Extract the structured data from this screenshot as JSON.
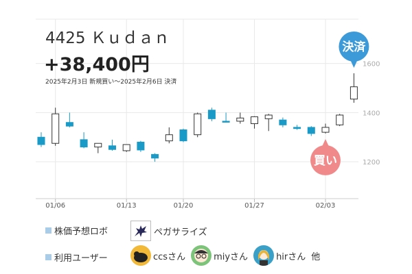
{
  "header": {
    "stock": "4425 Ｋｕｄａｎ",
    "profit": "+38,400円",
    "period": "2025年2月3日 新規買い〜2025年2月6日 決済"
  },
  "markers": {
    "buy": "買い",
    "settle": "決済"
  },
  "legend": {
    "robot_label": "株価予想ロボ",
    "robot_name": "ペガサライズ",
    "users_label": "利用ユーザー",
    "users": [
      "ccsさん",
      "miyさん",
      "hirさん"
    ],
    "others": "他"
  },
  "colors": {
    "up": "#ffffff",
    "down": "#1a9ac6",
    "outline": "#333333",
    "buy": "#f08a8a",
    "settle": "#3d9ad9",
    "grid": "#e8e8e8"
  },
  "chart_data": {
    "type": "candlestick",
    "y_ticks": [
      1200,
      1400,
      1600
    ],
    "x_ticks": [
      "01/06",
      "01/13",
      "01/20",
      "01/27",
      "02/03"
    ],
    "ylim": [
      1050,
      1780
    ],
    "candles": [
      {
        "date": "01/03",
        "open": 1300,
        "high": 1320,
        "low": 1260,
        "close": 1270
      },
      {
        "date": "01/06",
        "open": 1275,
        "high": 1420,
        "low": 1265,
        "close": 1395
      },
      {
        "date": "01/07",
        "open": 1360,
        "high": 1400,
        "low": 1340,
        "close": 1345
      },
      {
        "date": "01/08",
        "open": 1290,
        "high": 1320,
        "low": 1255,
        "close": 1260
      },
      {
        "date": "01/09",
        "open": 1260,
        "high": 1275,
        "low": 1235,
        "close": 1275
      },
      {
        "date": "01/10",
        "open": 1265,
        "high": 1290,
        "low": 1245,
        "close": 1250
      },
      {
        "date": "01/14",
        "open": 1245,
        "high": 1270,
        "low": 1240,
        "close": 1270
      },
      {
        "date": "01/15",
        "open": 1280,
        "high": 1285,
        "low": 1240,
        "close": 1248
      },
      {
        "date": "01/16",
        "open": 1230,
        "high": 1235,
        "low": 1200,
        "close": 1215
      },
      {
        "date": "01/17",
        "open": 1285,
        "high": 1340,
        "low": 1275,
        "close": 1310
      },
      {
        "date": "01/20",
        "open": 1330,
        "high": 1335,
        "low": 1280,
        "close": 1285
      },
      {
        "date": "01/21",
        "open": 1310,
        "high": 1400,
        "low": 1300,
        "close": 1395
      },
      {
        "date": "01/22",
        "open": 1410,
        "high": 1420,
        "low": 1365,
        "close": 1375
      },
      {
        "date": "01/23",
        "open": 1365,
        "high": 1400,
        "low": 1360,
        "close": 1363
      },
      {
        "date": "01/24",
        "open": 1365,
        "high": 1400,
        "low": 1355,
        "close": 1378
      },
      {
        "date": "01/27",
        "open": 1355,
        "high": 1385,
        "low": 1335,
        "close": 1383
      },
      {
        "date": "01/28",
        "open": 1375,
        "high": 1395,
        "low": 1325,
        "close": 1390
      },
      {
        "date": "01/29",
        "open": 1370,
        "high": 1380,
        "low": 1340,
        "close": 1350
      },
      {
        "date": "01/30",
        "open": 1340,
        "high": 1350,
        "low": 1330,
        "close": 1335
      },
      {
        "date": "01/31",
        "open": 1340,
        "high": 1345,
        "low": 1305,
        "close": 1315
      },
      {
        "date": "02/03",
        "open": 1320,
        "high": 1355,
        "low": 1315,
        "close": 1340
      },
      {
        "date": "02/04",
        "open": 1350,
        "high": 1395,
        "low": 1345,
        "close": 1390
      },
      {
        "date": "02/05",
        "open": 1455,
        "high": 1560,
        "low": 1440,
        "close": 1505
      }
    ],
    "x_tick_index": [
      1,
      6,
      10,
      15,
      20
    ],
    "buy_index": 20,
    "settle_index": 22
  }
}
